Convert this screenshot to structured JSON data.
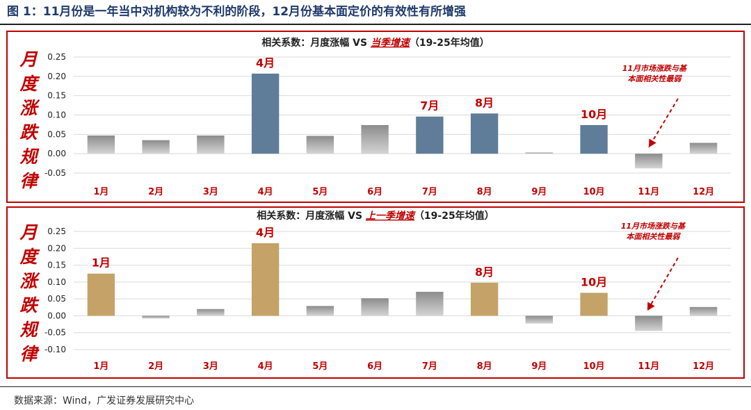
{
  "figure": {
    "title": "图 1：11月份是一年当中对机构较为不利的阶段，12月份基本面定价的有效性有所增强",
    "source": "数据来源：Wind，广发证券发展研究中心"
  },
  "colors": {
    "frame": "#c00000",
    "highlight_blue": "#5f7d99",
    "highlight_gold": "#c4a268",
    "neutral_gray": "#a6a6a6",
    "annotation_red": "#c00000"
  },
  "chart_data": [
    {
      "type": "bar",
      "title_prefix": "相关系数：月度涨幅 VS ",
      "title_emph": "当季增速",
      "title_suffix": "（19-25年均值）",
      "side_label": [
        "月",
        "度",
        "涨",
        "跌",
        "规",
        "律"
      ],
      "categories": [
        "1月",
        "2月",
        "3月",
        "4月",
        "5月",
        "6月",
        "7月",
        "8月",
        "9月",
        "10月",
        "11月",
        "12月"
      ],
      "values": [
        0.047,
        0.035,
        0.047,
        0.207,
        0.046,
        0.074,
        0.096,
        0.104,
        0.003,
        0.074,
        -0.038,
        0.028
      ],
      "highlight": [
        false,
        false,
        false,
        true,
        false,
        false,
        true,
        true,
        false,
        true,
        false,
        false
      ],
      "data_labels": [
        "",
        "",
        "",
        "4月",
        "",
        "",
        "7月",
        "8月",
        "",
        "10月",
        "",
        ""
      ],
      "y_ticks": [
        "0.25",
        "0.20",
        "0.15",
        "0.10",
        "0.05",
        "0.00",
        "-0.05"
      ],
      "ylim": [
        -0.05,
        0.25
      ],
      "annotation": {
        "lines": [
          "11月市场涨跌与基",
          "本面相关性最弱"
        ],
        "target": "11月"
      }
    },
    {
      "type": "bar",
      "title_prefix": "相关系数：月度涨幅 VS ",
      "title_emph": "上一季增速",
      "title_suffix": "（19-25年均值）",
      "side_label": [
        "月",
        "度",
        "涨",
        "跌",
        "规",
        "律"
      ],
      "categories": [
        "1月",
        "2月",
        "3月",
        "4月",
        "5月",
        "6月",
        "7月",
        "8月",
        "9月",
        "10月",
        "11月",
        "12月"
      ],
      "values": [
        0.125,
        -0.008,
        0.02,
        0.215,
        0.029,
        0.052,
        0.071,
        0.098,
        -0.023,
        0.068,
        -0.045,
        0.026
      ],
      "highlight": [
        true,
        false,
        false,
        true,
        false,
        false,
        false,
        true,
        false,
        true,
        false,
        false
      ],
      "data_labels": [
        "1月",
        "",
        "",
        "4月",
        "",
        "",
        "",
        "8月",
        "",
        "10月",
        "",
        ""
      ],
      "y_ticks": [
        "0.25",
        "0.20",
        "0.15",
        "0.10",
        "0.05",
        "0.00",
        "-0.05",
        "-0.10"
      ],
      "ylim": [
        -0.1,
        0.25
      ],
      "annotation": {
        "lines": [
          "11月市场涨跌与基",
          "本面相关性最弱"
        ],
        "target": "11月"
      }
    }
  ]
}
